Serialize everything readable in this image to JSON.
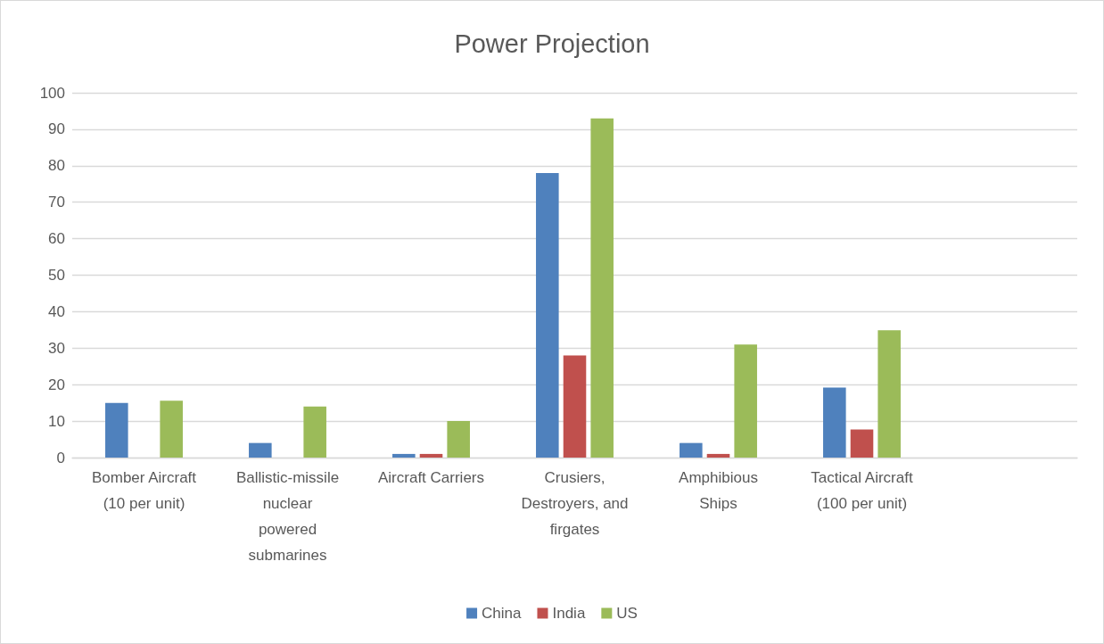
{
  "chart_data": {
    "type": "bar",
    "title": "Power Projection",
    "categories": [
      "Bomber Aircraft\n(10 per unit)",
      "Ballistic-missile\nnuclear\npowered\nsubmarines",
      "Aircraft Carriers",
      "Crusiers,\nDestroyers, and\nfirgates",
      "Amphibious\nShips",
      "Tactical Aircraft\n(100 per unit)",
      null
    ],
    "series": [
      {
        "name": "China",
        "color": "#4f81bd",
        "values": [
          15,
          4,
          1,
          78,
          4,
          19.2,
          null
        ]
      },
      {
        "name": "India",
        "color": "#c0504d",
        "values": [
          null,
          null,
          1,
          28,
          1,
          7.7,
          null
        ]
      },
      {
        "name": "US",
        "color": "#9bbb59",
        "values": [
          15.6,
          14,
          10,
          93,
          31,
          34.9,
          null
        ]
      }
    ],
    "ylim": [
      0,
      100
    ],
    "yticks": [
      0,
      10,
      20,
      30,
      40,
      50,
      60,
      70,
      80,
      90,
      100
    ],
    "grid": "y",
    "legend": "bottom"
  }
}
